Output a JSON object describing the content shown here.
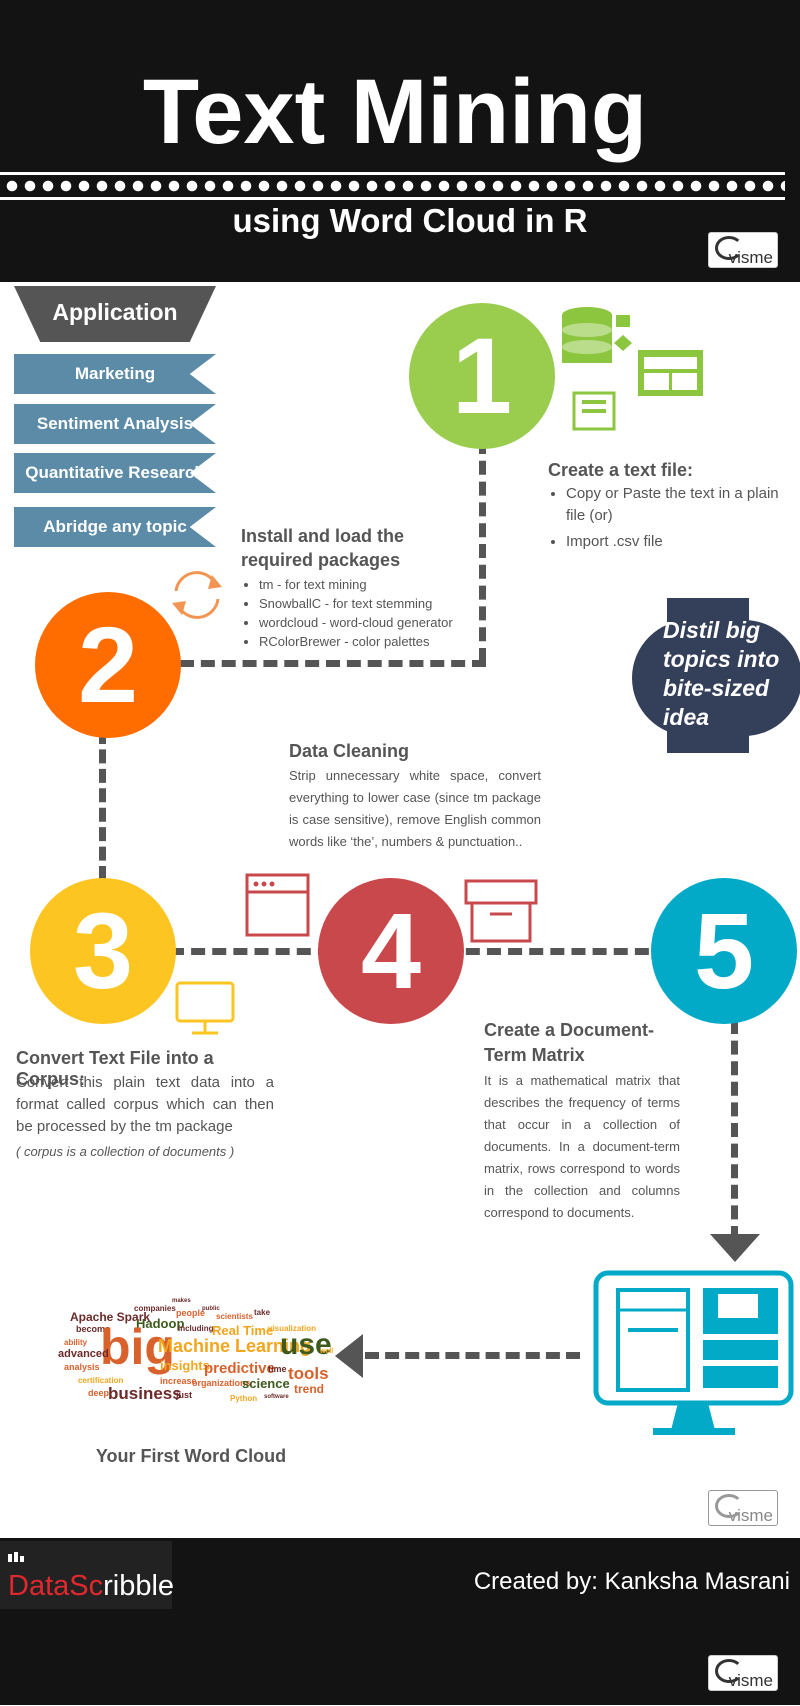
{
  "header": {
    "title": "Text Mining",
    "subtitle": "using Word Cloud in R",
    "badge": "visme"
  },
  "application": {
    "title": "Application",
    "items": [
      "Marketing",
      "Sentiment Analysis",
      "Quantitative Research",
      "Abridge any topic"
    ]
  },
  "steps": {
    "s1": {
      "number": "1",
      "heading": "Create a text file:",
      "bullets": [
        "Copy or Paste the text in a plain file (or)",
        "Import .csv file"
      ],
      "color": "#9acd4e"
    },
    "s2": {
      "number": "2",
      "heading": "Install and load the required packages",
      "bullets": [
        "tm - for text mining",
        "SnowballC - for text stemming",
        "wordcloud - word-cloud generator",
        "RColorBrewer - color palettes"
      ],
      "color": "#ff6d00"
    },
    "s3": {
      "number": "3",
      "heading": "Convert Text File into a Corpus:",
      "body": "Convert this plain text data into a format called corpus which can then be processed by the tm package",
      "note": "( corpus is a collection of documents )",
      "color": "#fcc521"
    },
    "s4": {
      "number": "4",
      "heading": "Data Cleaning",
      "body": "Strip unnecessary white space, convert everything to lower case (since tm package is case sensitive), remove English common words like ‘the’, numbers & punctuation..",
      "color": "#c8484b"
    },
    "s5": {
      "number": "5",
      "heading": "Create a Document-Term Matrix",
      "body": "It is a mathematical matrix that describes the frequency of terms that occur in a collection of documents. In a document-term matrix, rows correspond to words in the collection and columns correspond to documents.",
      "color": "#02aac8"
    }
  },
  "distil": "Distil big topics into bite-sized idea",
  "wordcloud": {
    "caption": "Your First Word Cloud",
    "words": [
      "Apache Spark",
      "companies",
      "makes",
      "people",
      "public",
      "scientists",
      "take",
      "become",
      "Hadoop",
      "including",
      "Real Time",
      "visualization",
      "ability",
      "big",
      "Machine Learning",
      "use",
      "well",
      "advanced",
      "analysis",
      "insights",
      "predictive",
      "time",
      "tools",
      "certification",
      "increase",
      "organizations",
      "science",
      "trend",
      "deep",
      "business",
      "just",
      "Python",
      "software"
    ]
  },
  "footer": {
    "brand_a": "Data",
    "brand_b": "Sc",
    "brand_c": "ribble",
    "credit": "Created by: Kanksha Masrani",
    "badge": "visme"
  }
}
